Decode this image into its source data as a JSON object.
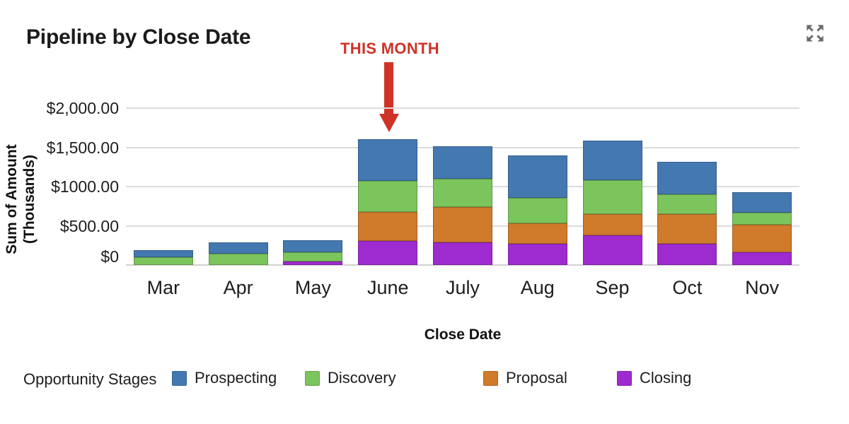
{
  "header": {
    "title": "Pipeline by Close Date"
  },
  "annotation": {
    "label": "THIS MONTH",
    "color": "#ce3326",
    "target_category": "June"
  },
  "colors": {
    "prospecting_blue": "#4478b1",
    "discovery_green": "#7cc45c",
    "proposal_orange": "#d07a2c",
    "closing_purple": "#9e2bd0",
    "annotation_red": "#ce3326",
    "gridline_gray": "#dcdcdc",
    "icon_gray": "#6a6a6a",
    "text_dark": "#1d1d1d"
  },
  "chart_data": {
    "type": "bar",
    "stacked": true,
    "title": "Pipeline by Close Date",
    "xlabel": "Close Date",
    "ylabel": "Sum of Amount (Thousands)",
    "ylabel_lines": [
      "Sum of Amount",
      "(Thousands)"
    ],
    "categories": [
      "Mar",
      "Apr",
      "May",
      "June",
      "July",
      "Aug",
      "Sep",
      "Oct",
      "Nov"
    ],
    "series": [
      {
        "name": "Prospecting",
        "color": "#4478b1",
        "values": [
          90,
          150,
          150,
          525,
          410,
          540,
          510,
          415,
          260
        ]
      },
      {
        "name": "Discovery",
        "color": "#7cc45c",
        "values": [
          95,
          140,
          120,
          400,
          360,
          330,
          430,
          255,
          155
        ]
      },
      {
        "name": "Proposal",
        "color": "#d07a2c",
        "values": [
          0,
          0,
          0,
          365,
          455,
          260,
          270,
          375,
          345
        ]
      },
      {
        "name": "Closing",
        "color": "#9e2bd0",
        "values": [
          0,
          0,
          45,
          310,
          285,
          270,
          380,
          270,
          165
        ]
      }
    ],
    "stack_order_bottom_to_top": [
      "Closing",
      "Proposal",
      "Discovery",
      "Prospecting"
    ],
    "totals": [
      185,
      290,
      315,
      1600,
      1510,
      1400,
      1590,
      1315,
      925
    ],
    "y_ticks": [
      {
        "label": "$2,000.00",
        "value": 2000
      },
      {
        "label": "$1,500.00",
        "value": 1500
      },
      {
        "label": "$1000.00",
        "value": 1000
      },
      {
        "label": "$500.00",
        "value": 500
      },
      {
        "label": "$0",
        "value": 0
      }
    ],
    "ylim": [
      0,
      2000
    ],
    "grid": true,
    "legend_title": "Opportunity Stages",
    "legend_position": "bottom",
    "annotation": {
      "text": "THIS MONTH",
      "target_category": "June"
    }
  }
}
